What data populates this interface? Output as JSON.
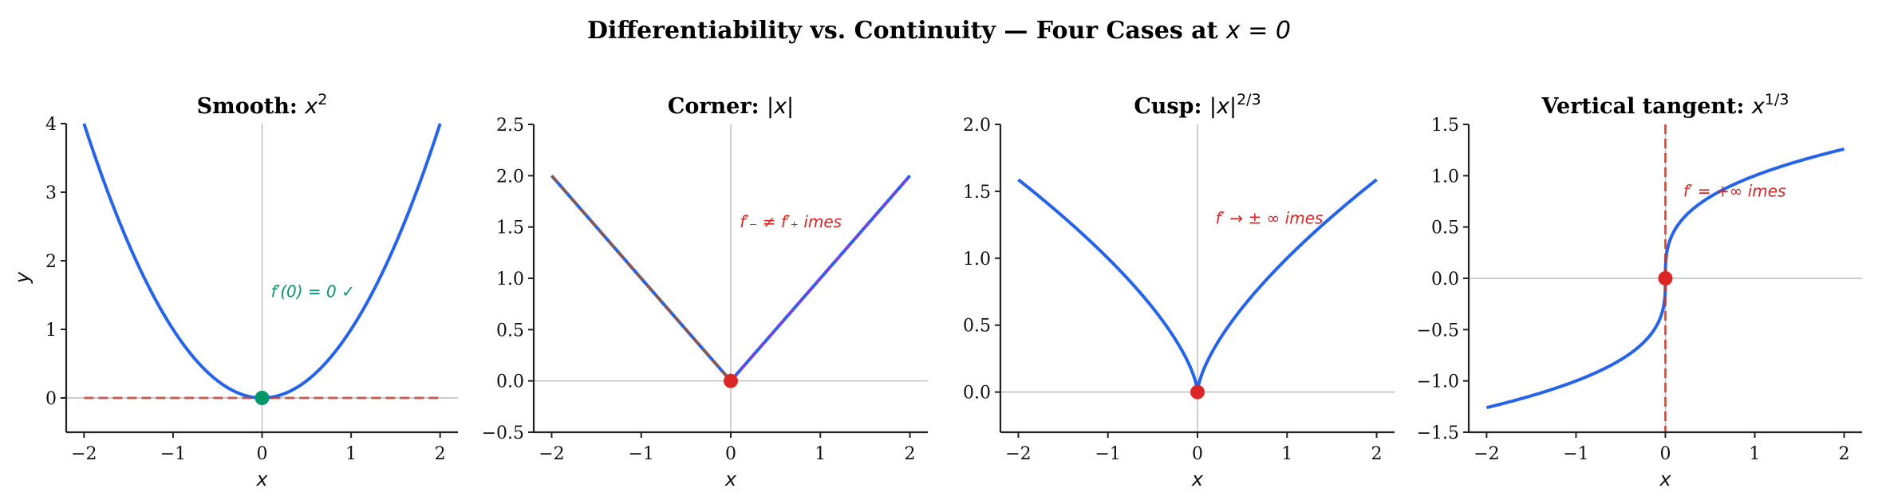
{
  "figure": {
    "suptitle_text": "Differentiability vs. Continuity — Four Cases at ",
    "suptitle_math": "x = 0",
    "ylabel": "y",
    "xlabel": "x"
  },
  "colors": {
    "curve": "#2563eb",
    "point_ok": "#059669",
    "point_bad": "#dc2626",
    "tangent_dash": "#c0392b",
    "left_tangent": "#b45309",
    "right_tangent": "#9333ea",
    "annot_ok": "#059669",
    "annot_bad": "#dc2626",
    "refline": "#b0b0b0",
    "spine": "#222222"
  },
  "chart_data": [
    {
      "type": "line",
      "title": "Smooth: x^2",
      "title_label": "Smooth: ",
      "title_math": "x",
      "title_sup": "2",
      "function": "x^2",
      "xlabel": "x",
      "ylabel": "y",
      "xlim": [
        -2.2,
        2.2
      ],
      "ylim": [
        -0.5,
        4
      ],
      "xticks": [
        -2,
        -1,
        0,
        1,
        2
      ],
      "xtick_labels": [
        "−2",
        "−1",
        "0",
        "1",
        "2"
      ],
      "yticks": [
        0,
        1,
        2,
        3,
        4
      ],
      "ytick_labels": [
        "0",
        "1",
        "2",
        "3",
        "4"
      ],
      "x": [
        -2,
        -1.5,
        -1,
        -0.5,
        0,
        0.5,
        1,
        1.5,
        2
      ],
      "y": [
        4,
        2.25,
        1,
        0.25,
        0,
        0.25,
        1,
        2.25,
        4
      ],
      "point": {
        "x": 0,
        "y": 0,
        "color_key": "point_ok"
      },
      "tangent": {
        "type": "horizontal",
        "y": 0,
        "x_range": [
          -2,
          2
        ],
        "style": "dashed"
      },
      "annotation": {
        "text": "f′(0) = 0 ✓",
        "x": 0.1,
        "y": 1.55,
        "color_key": "annot_ok"
      }
    },
    {
      "type": "line",
      "title": "Corner: |x|",
      "title_label": "Corner: ",
      "title_math": "|x|",
      "title_sup": "",
      "function": "|x|",
      "xlabel": "x",
      "xlim": [
        -2.2,
        2.2
      ],
      "ylim": [
        -0.5,
        2.5
      ],
      "xticks": [
        -2,
        -1,
        0,
        1,
        2
      ],
      "xtick_labels": [
        "−2",
        "−1",
        "0",
        "1",
        "2"
      ],
      "yticks": [
        -0.5,
        0,
        0.5,
        1,
        1.5,
        2,
        2.5
      ],
      "ytick_labels": [
        "−0.5",
        "0.0",
        "0.5",
        "1.0",
        "1.5",
        "2.0",
        "2.5"
      ],
      "x": [
        -2,
        -1,
        0,
        1,
        2
      ],
      "y": [
        2,
        1,
        0,
        1,
        2
      ],
      "point": {
        "x": 0,
        "y": 0,
        "color_key": "point_bad"
      },
      "tangents": [
        {
          "name": "left derivative (slope −1)",
          "from": [
            -2,
            2
          ],
          "to": [
            0,
            0
          ],
          "color_key": "left_tangent",
          "style": "dashed"
        },
        {
          "name": "right derivative (slope +1)",
          "from": [
            0,
            0
          ],
          "to": [
            2,
            2
          ],
          "color_key": "right_tangent",
          "style": "dashed"
        }
      ],
      "annotation": {
        "text": "f′₋ ≠ f′₊  imes",
        "x": 0.1,
        "y": 1.55,
        "color_key": "annot_bad"
      }
    },
    {
      "type": "line",
      "title": "Cusp: |x|^(2/3)",
      "title_label": "Cusp: ",
      "title_math": "|x|",
      "title_sup": "2/3",
      "function": "|x|^(2/3)",
      "xlabel": "x",
      "xlim": [
        -2.2,
        2.2
      ],
      "ylim": [
        -0.3,
        2.0
      ],
      "xticks": [
        -2,
        -1,
        0,
        1,
        2
      ],
      "xtick_labels": [
        "−2",
        "−1",
        "0",
        "1",
        "2"
      ],
      "yticks": [
        0,
        0.5,
        1,
        1.5,
        2
      ],
      "ytick_labels": [
        "0.0",
        "0.5",
        "1.0",
        "1.5",
        "2.0"
      ],
      "x": [
        -2,
        -1.5,
        -1,
        -0.5,
        -0.1,
        0,
        0.1,
        0.5,
        1,
        1.5,
        2
      ],
      "y": [
        1.587,
        1.31,
        1.0,
        0.63,
        0.215,
        0,
        0.215,
        0.63,
        1.0,
        1.31,
        1.587
      ],
      "point": {
        "x": 0,
        "y": 0,
        "color_key": "point_bad"
      },
      "annotation": {
        "text": "f′ → ± ∞  imes",
        "x": 0.2,
        "y": 1.3,
        "color_key": "annot_bad"
      }
    },
    {
      "type": "line",
      "title": "Vertical tangent: x^(1/3)",
      "title_label": "Vertical tangent: ",
      "title_math": "x",
      "title_sup": "1/3",
      "function": "x^(1/3)",
      "xlabel": "x",
      "xlim": [
        -2.2,
        2.2
      ],
      "ylim": [
        -1.5,
        1.5
      ],
      "xticks": [
        -2,
        -1,
        0,
        1,
        2
      ],
      "xtick_labels": [
        "−2",
        "−1",
        "0",
        "1",
        "2"
      ],
      "yticks": [
        -1.5,
        -1,
        -0.5,
        0,
        0.5,
        1,
        1.5
      ],
      "ytick_labels": [
        "−1.5",
        "−1.0",
        "−0.5",
        "0.0",
        "0.5",
        "1.0",
        "1.5"
      ],
      "x": [
        -2,
        -1,
        -0.5,
        -0.1,
        0,
        0.1,
        0.5,
        1,
        2
      ],
      "y": [
        -1.26,
        -1.0,
        -0.794,
        -0.464,
        0,
        0.464,
        0.794,
        1.0,
        1.26
      ],
      "point": {
        "x": 0,
        "y": 0,
        "color_key": "point_bad"
      },
      "tangent": {
        "type": "vertical",
        "x": 0,
        "style": "dashed"
      },
      "annotation": {
        "text": "f′ = +∞  imes",
        "x": 0.2,
        "y": 0.85,
        "color_key": "annot_bad"
      }
    }
  ]
}
